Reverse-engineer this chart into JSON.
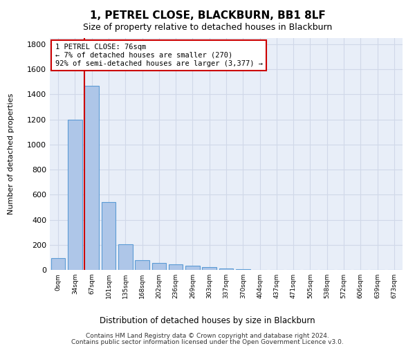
{
  "title": "1, PETREL CLOSE, BLACKBURN, BB1 8LF",
  "subtitle": "Size of property relative to detached houses in Blackburn",
  "xlabel": "Distribution of detached houses by size in Blackburn",
  "ylabel": "Number of detached properties",
  "bar_labels": [
    "0sqm",
    "34sqm",
    "67sqm",
    "101sqm",
    "135sqm",
    "168sqm",
    "202sqm",
    "236sqm",
    "269sqm",
    "303sqm",
    "337sqm",
    "370sqm",
    "404sqm",
    "437sqm",
    "471sqm",
    "505sqm",
    "538sqm",
    "572sqm",
    "606sqm",
    "639sqm",
    "673sqm"
  ],
  "bar_values": [
    95,
    1200,
    1470,
    540,
    205,
    75,
    55,
    45,
    33,
    22,
    10,
    5,
    0,
    0,
    0,
    0,
    0,
    0,
    0,
    0,
    0
  ],
  "bar_color": "#aec6e8",
  "bar_edge_color": "#5b9bd5",
  "vline_color": "#cc0000",
  "annotation_text": "1 PETREL CLOSE: 76sqm\n← 7% of detached houses are smaller (270)\n92% of semi-detached houses are larger (3,377) →",
  "annotation_box_color": "#ffffff",
  "annotation_box_edge": "#cc0000",
  "ylim": [
    0,
    1850
  ],
  "yticks": [
    0,
    200,
    400,
    600,
    800,
    1000,
    1200,
    1400,
    1600,
    1800
  ],
  "grid_color": "#d0d8e8",
  "background_color": "#e8eef8",
  "footer_line1": "Contains HM Land Registry data © Crown copyright and database right 2024.",
  "footer_line2": "Contains public sector information licensed under the Open Government Licence v3.0."
}
